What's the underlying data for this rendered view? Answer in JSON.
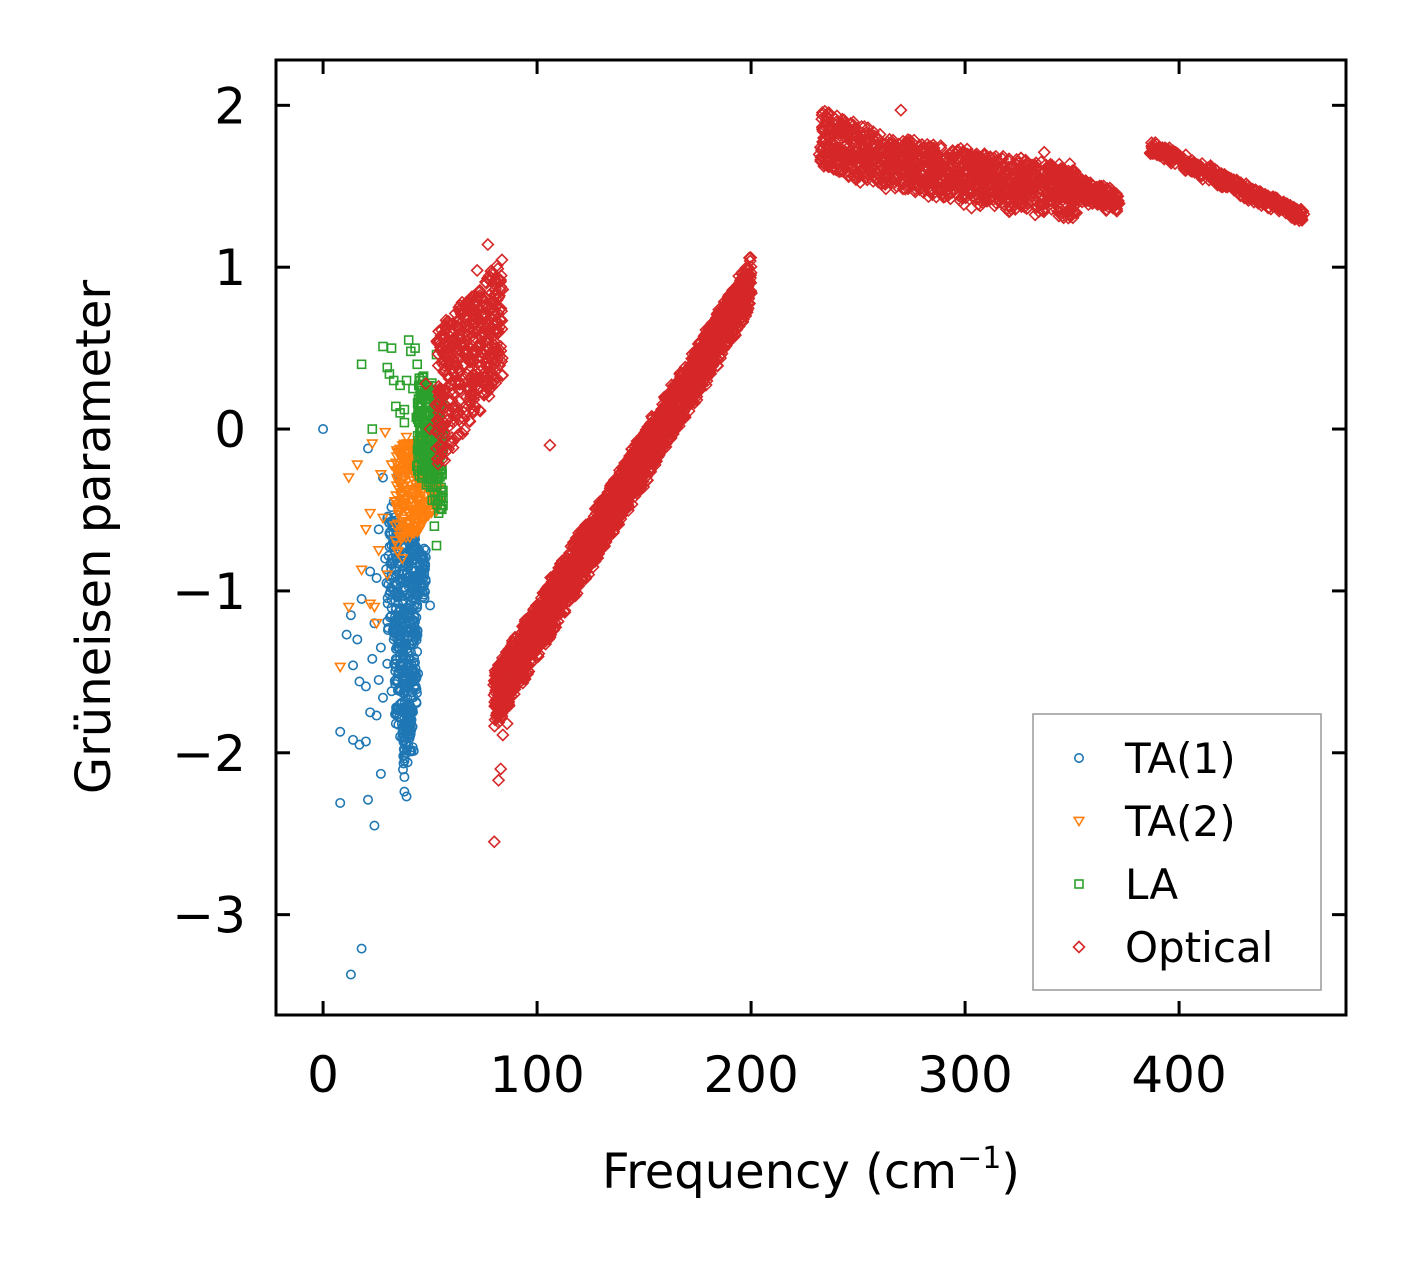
{
  "chart_data": {
    "type": "scatter",
    "xlabel": "Frequency (cm",
    "xlabel_sup": "−1",
    "xlabel_end": ")",
    "ylabel": "Grüneisen parameter",
    "xlim": [
      -22,
      478
    ],
    "ylim": [
      -3.62,
      2.28
    ],
    "xticks": [
      {
        "value": 0,
        "label": "0"
      },
      {
        "value": 100,
        "label": "100"
      },
      {
        "value": 200,
        "label": "200"
      },
      {
        "value": 300,
        "label": "300"
      },
      {
        "value": 400,
        "label": "400"
      }
    ],
    "yticks": [
      {
        "value": 2,
        "label": "2"
      },
      {
        "value": 1,
        "label": "1"
      },
      {
        "value": 0,
        "label": "0"
      },
      {
        "value": -1,
        "label": "−1"
      },
      {
        "value": -2,
        "label": "−2"
      },
      {
        "value": -3,
        "label": "−3"
      }
    ],
    "legend_position": "lower-right",
    "series": [
      {
        "name": "TA(1)",
        "marker": "circle",
        "color": "#1f77b4",
        "points": [
          [
            0,
            0
          ],
          [
            13,
            -3.37
          ],
          [
            18,
            -3.21
          ],
          [
            8,
            -2.31
          ],
          [
            21,
            -2.29
          ],
          [
            24,
            -2.45
          ],
          [
            27,
            -2.13
          ],
          [
            8,
            -1.87
          ],
          [
            14,
            -1.92
          ],
          [
            17,
            -1.95
          ],
          [
            20,
            -1.93
          ],
          [
            11,
            -1.27
          ],
          [
            14,
            -1.46
          ],
          [
            17,
            -1.56
          ],
          [
            20,
            -1.59
          ],
          [
            22,
            -1.75
          ],
          [
            25,
            -1.77
          ],
          [
            28,
            -1.66
          ],
          [
            30,
            -1.45
          ],
          [
            32,
            -1.62
          ],
          [
            34,
            -1.82
          ],
          [
            36,
            -1.9
          ],
          [
            38,
            -2.05
          ],
          [
            38,
            -2.15
          ],
          [
            38,
            -2.24
          ],
          [
            39,
            -2.27
          ],
          [
            13,
            -1.15
          ],
          [
            16,
            -1.3
          ],
          [
            22,
            -0.88
          ],
          [
            25,
            -0.92
          ],
          [
            26,
            -0.62
          ],
          [
            28,
            -0.3
          ],
          [
            30,
            -0.55
          ],
          [
            32,
            -0.72
          ],
          [
            33,
            -0.45
          ],
          [
            35,
            -0.28
          ],
          [
            37,
            -0.6
          ],
          [
            40,
            -0.82
          ],
          [
            42,
            -0.98
          ],
          [
            44,
            -1.1
          ],
          [
            46,
            -0.78
          ],
          [
            48,
            -0.94
          ],
          [
            50,
            -1.09
          ],
          [
            47,
            -0.55
          ],
          [
            45,
            -0.35
          ],
          [
            43,
            -0.68
          ],
          [
            41,
            -1.25
          ],
          [
            39,
            -1.6
          ],
          [
            40,
            -1.75
          ],
          [
            42,
            -1.5
          ],
          [
            35,
            -1.08
          ],
          [
            33,
            -1.3
          ],
          [
            31,
            -1.02
          ],
          [
            29,
            -0.8
          ],
          [
            27,
            -1.35
          ],
          [
            26,
            -1.55
          ],
          [
            24,
            -1.2
          ],
          [
            23,
            -1.42
          ],
          [
            36,
            -1.42
          ],
          [
            37,
            -1.22
          ],
          [
            38,
            -1.35
          ],
          [
            39,
            -0.95
          ],
          [
            34,
            -1.55
          ],
          [
            21,
            -0.12
          ],
          [
            18,
            -1.05
          ]
        ],
        "clusters": [
          {
            "x": [
              30,
              48
            ],
            "y0": [
              -0.45,
              -0.75
            ],
            "y1": [
              -1.3,
              -1.05
            ],
            "n": 260
          },
          {
            "x": [
              33,
              44
            ],
            "y0": [
              -1.1,
              -1.15
            ],
            "y1": [
              -1.85,
              -1.75
            ],
            "n": 220
          },
          {
            "x": [
              37,
              42
            ],
            "y0": [
              -1.8,
              -1.75
            ],
            "y1": [
              -2.1,
              -2.0
            ],
            "n": 60
          }
        ]
      },
      {
        "name": "TA(2)",
        "marker": "triangle-down",
        "color": "#ff7f0e",
        "points": [
          [
            8,
            -1.47
          ],
          [
            12,
            -1.1
          ],
          [
            12,
            -0.3
          ],
          [
            16,
            -0.22
          ],
          [
            18,
            -0.87
          ],
          [
            20,
            -0.62
          ],
          [
            22,
            -0.52
          ],
          [
            23,
            -0.09
          ],
          [
            24,
            -1.1
          ],
          [
            25,
            -1.2
          ],
          [
            26,
            -0.75
          ],
          [
            27,
            -0.28
          ],
          [
            28,
            -0.55
          ],
          [
            29,
            -0.02
          ],
          [
            30,
            -0.9
          ],
          [
            32,
            -0.22
          ],
          [
            34,
            -0.45
          ],
          [
            35,
            -0.15
          ],
          [
            37,
            -0.8
          ],
          [
            38,
            -0.35
          ],
          [
            39,
            -0.05
          ],
          [
            41,
            -0.62
          ],
          [
            43,
            -0.28
          ],
          [
            45,
            -0.48
          ],
          [
            46,
            -0.2
          ],
          [
            48,
            -0.52
          ],
          [
            49,
            -0.35
          ],
          [
            51,
            -0.12
          ],
          [
            53,
            -0.28
          ],
          [
            22,
            -1.08
          ]
        ],
        "clusters": [
          {
            "x": [
              34,
              54
            ],
            "y0": [
              -0.1,
              -0.05
            ],
            "y1": [
              -0.8,
              -0.5
            ],
            "n": 320
          }
        ]
      },
      {
        "name": "LA",
        "marker": "square",
        "color": "#2ca02c",
        "points": [
          [
            18,
            0.4
          ],
          [
            23,
            0.0
          ],
          [
            28,
            0.51
          ],
          [
            30,
            0.38
          ],
          [
            32,
            0.5
          ],
          [
            33,
            0.3
          ],
          [
            34,
            0.14
          ],
          [
            36,
            0.1
          ],
          [
            38,
            0.04
          ],
          [
            40,
            0.55
          ],
          [
            41,
            0.48
          ],
          [
            42,
            0.25
          ],
          [
            43,
            0.5
          ],
          [
            44,
            0.4
          ],
          [
            45,
            0.3
          ],
          [
            46,
            0.15
          ],
          [
            47,
            -0.1
          ],
          [
            49,
            -0.22
          ],
          [
            51,
            -0.44
          ],
          [
            52,
            -0.6
          ],
          [
            53,
            -0.72
          ],
          [
            53,
            0.46
          ],
          [
            55,
            -0.25
          ],
          [
            56,
            -0.05
          ],
          [
            54,
            -0.52
          ],
          [
            39,
            0.3
          ],
          [
            36,
            0.27
          ],
          [
            31,
            0.34
          ],
          [
            38,
            0.12
          ],
          [
            48,
            0.2
          ]
        ],
        "clusters": [
          {
            "x": [
              44,
              56
            ],
            "y0": [
              0.35,
              0.2
            ],
            "y1": [
              -0.25,
              -0.55
            ],
            "n": 260
          }
        ]
      },
      {
        "name": "Optical",
        "marker": "diamond",
        "color": "#d62728",
        "points": [
          [
            77,
            1.14
          ],
          [
            80,
            -2.55
          ],
          [
            82,
            -2.17
          ],
          [
            83,
            -2.1
          ],
          [
            84,
            -1.89
          ],
          [
            86,
            -1.82
          ],
          [
            106,
            -0.1
          ],
          [
            119,
            -0.8
          ],
          [
            117,
            -0.7
          ],
          [
            270,
            1.97
          ],
          [
            337,
            1.71
          ],
          [
            72,
            0.98
          ],
          [
            48,
            0.28
          ],
          [
            50,
            0.0
          ]
        ],
        "clusters": [
          {
            "x": [
              53,
              84
            ],
            "y0": [
              0.6,
              1.05
            ],
            "y1": [
              -0.25,
              0.3
            ],
            "n": 500
          },
          {
            "x": [
              80,
              200
            ],
            "y0": [
              -1.5,
              1.05
            ],
            "y1": [
              -1.85,
              0.75
            ],
            "n": 2400
          },
          {
            "x": [
              232,
              265
            ],
            "y0": [
              1.98,
              1.8
            ],
            "y1": [
              1.62,
              1.48
            ],
            "n": 320
          },
          {
            "x": [
              265,
              310
            ],
            "y0": [
              1.8,
              1.7
            ],
            "y1": [
              1.5,
              1.36
            ],
            "n": 440
          },
          {
            "x": [
              305,
              352
            ],
            "y0": [
              1.7,
              1.62
            ],
            "y1": [
              1.4,
              1.28
            ],
            "n": 440
          },
          {
            "x": [
              340,
              372
            ],
            "y0": [
              1.62,
              1.46
            ],
            "y1": [
              1.43,
              1.35
            ],
            "n": 240
          },
          {
            "x": [
              387,
              458
            ],
            "y0": [
              1.78,
              1.34
            ],
            "y1": [
              1.7,
              1.28
            ],
            "n": 420
          }
        ]
      }
    ]
  }
}
